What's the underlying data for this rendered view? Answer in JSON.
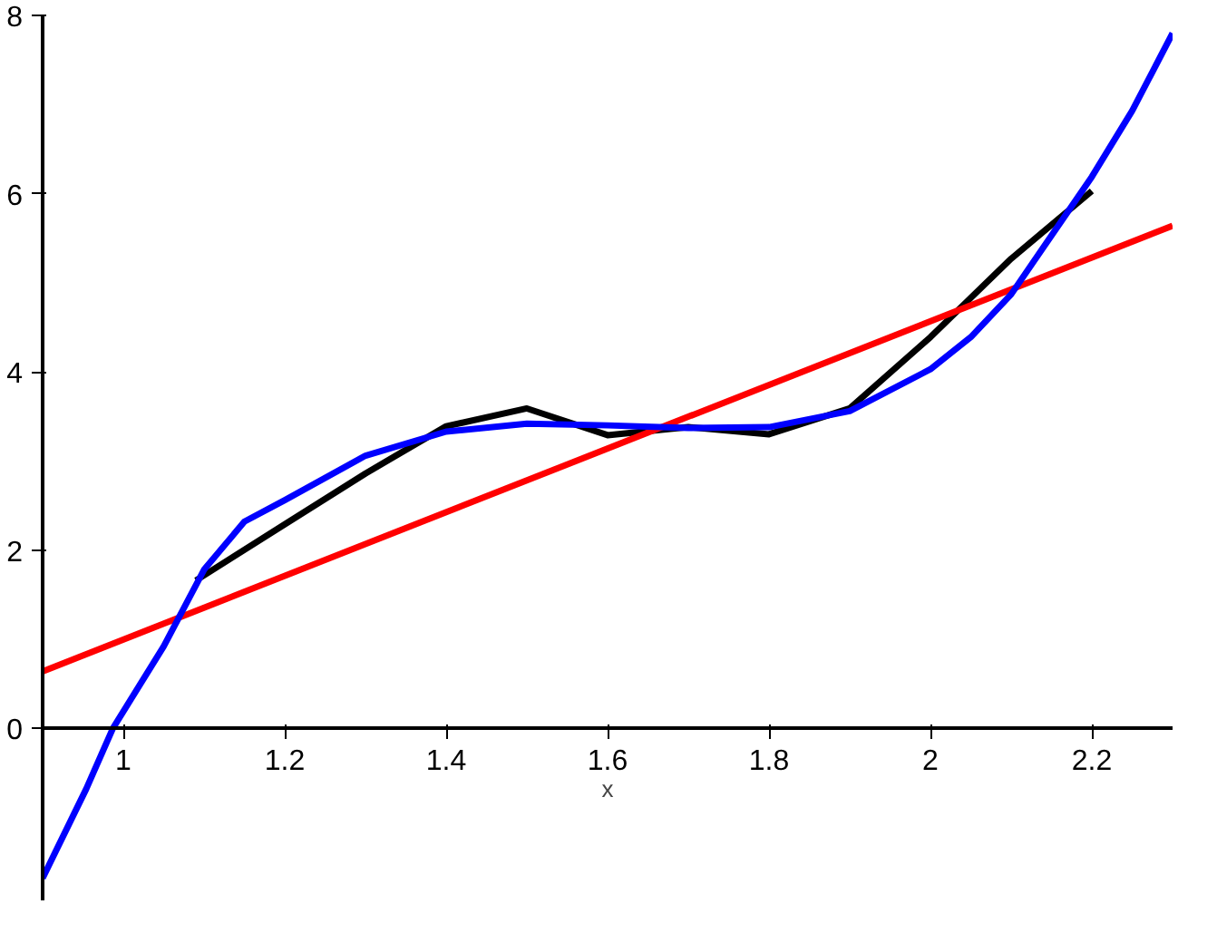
{
  "chart_data": {
    "type": "line",
    "xlabel": "x",
    "xlim": [
      0.9,
      2.3
    ],
    "ylim": [
      -1.93,
      8
    ],
    "xticks": [
      1,
      1.2,
      1.4,
      1.6,
      1.8,
      2,
      2.2
    ],
    "yticks": [
      0,
      2,
      4,
      6,
      8
    ],
    "grid": false,
    "marker": "none",
    "line_style": "solid",
    "series": [
      {
        "color": "#000000",
        "x": [
          1.09,
          1.2,
          1.3,
          1.4,
          1.5,
          1.6,
          1.7,
          1.8,
          1.9,
          2.0,
          2.1,
          2.2
        ],
        "values": [
          1.66,
          2.29,
          2.86,
          3.39,
          3.59,
          3.29,
          3.38,
          3.3,
          3.59,
          4.39,
          5.27,
          6.03
        ]
      },
      {
        "color": "#ff0000",
        "x": [
          0.9,
          2.3
        ],
        "values": [
          0.64,
          5.64
        ]
      },
      {
        "color": "#0000ff",
        "x": [
          0.9,
          0.954,
          0.987,
          1.05,
          1.1,
          1.15,
          1.2,
          1.3,
          1.4,
          1.5,
          1.6,
          1.7,
          1.8,
          1.9,
          2.0,
          2.05,
          2.1,
          2.15,
          2.2,
          2.25,
          2.3
        ],
        "values": [
          -1.68,
          -0.68,
          0,
          0.92,
          1.78,
          2.32,
          2.56,
          3.06,
          3.33,
          3.42,
          3.4,
          3.37,
          3.38,
          3.56,
          4.03,
          4.39,
          4.87,
          5.53,
          6.19,
          6.93,
          7.8
        ]
      }
    ]
  }
}
